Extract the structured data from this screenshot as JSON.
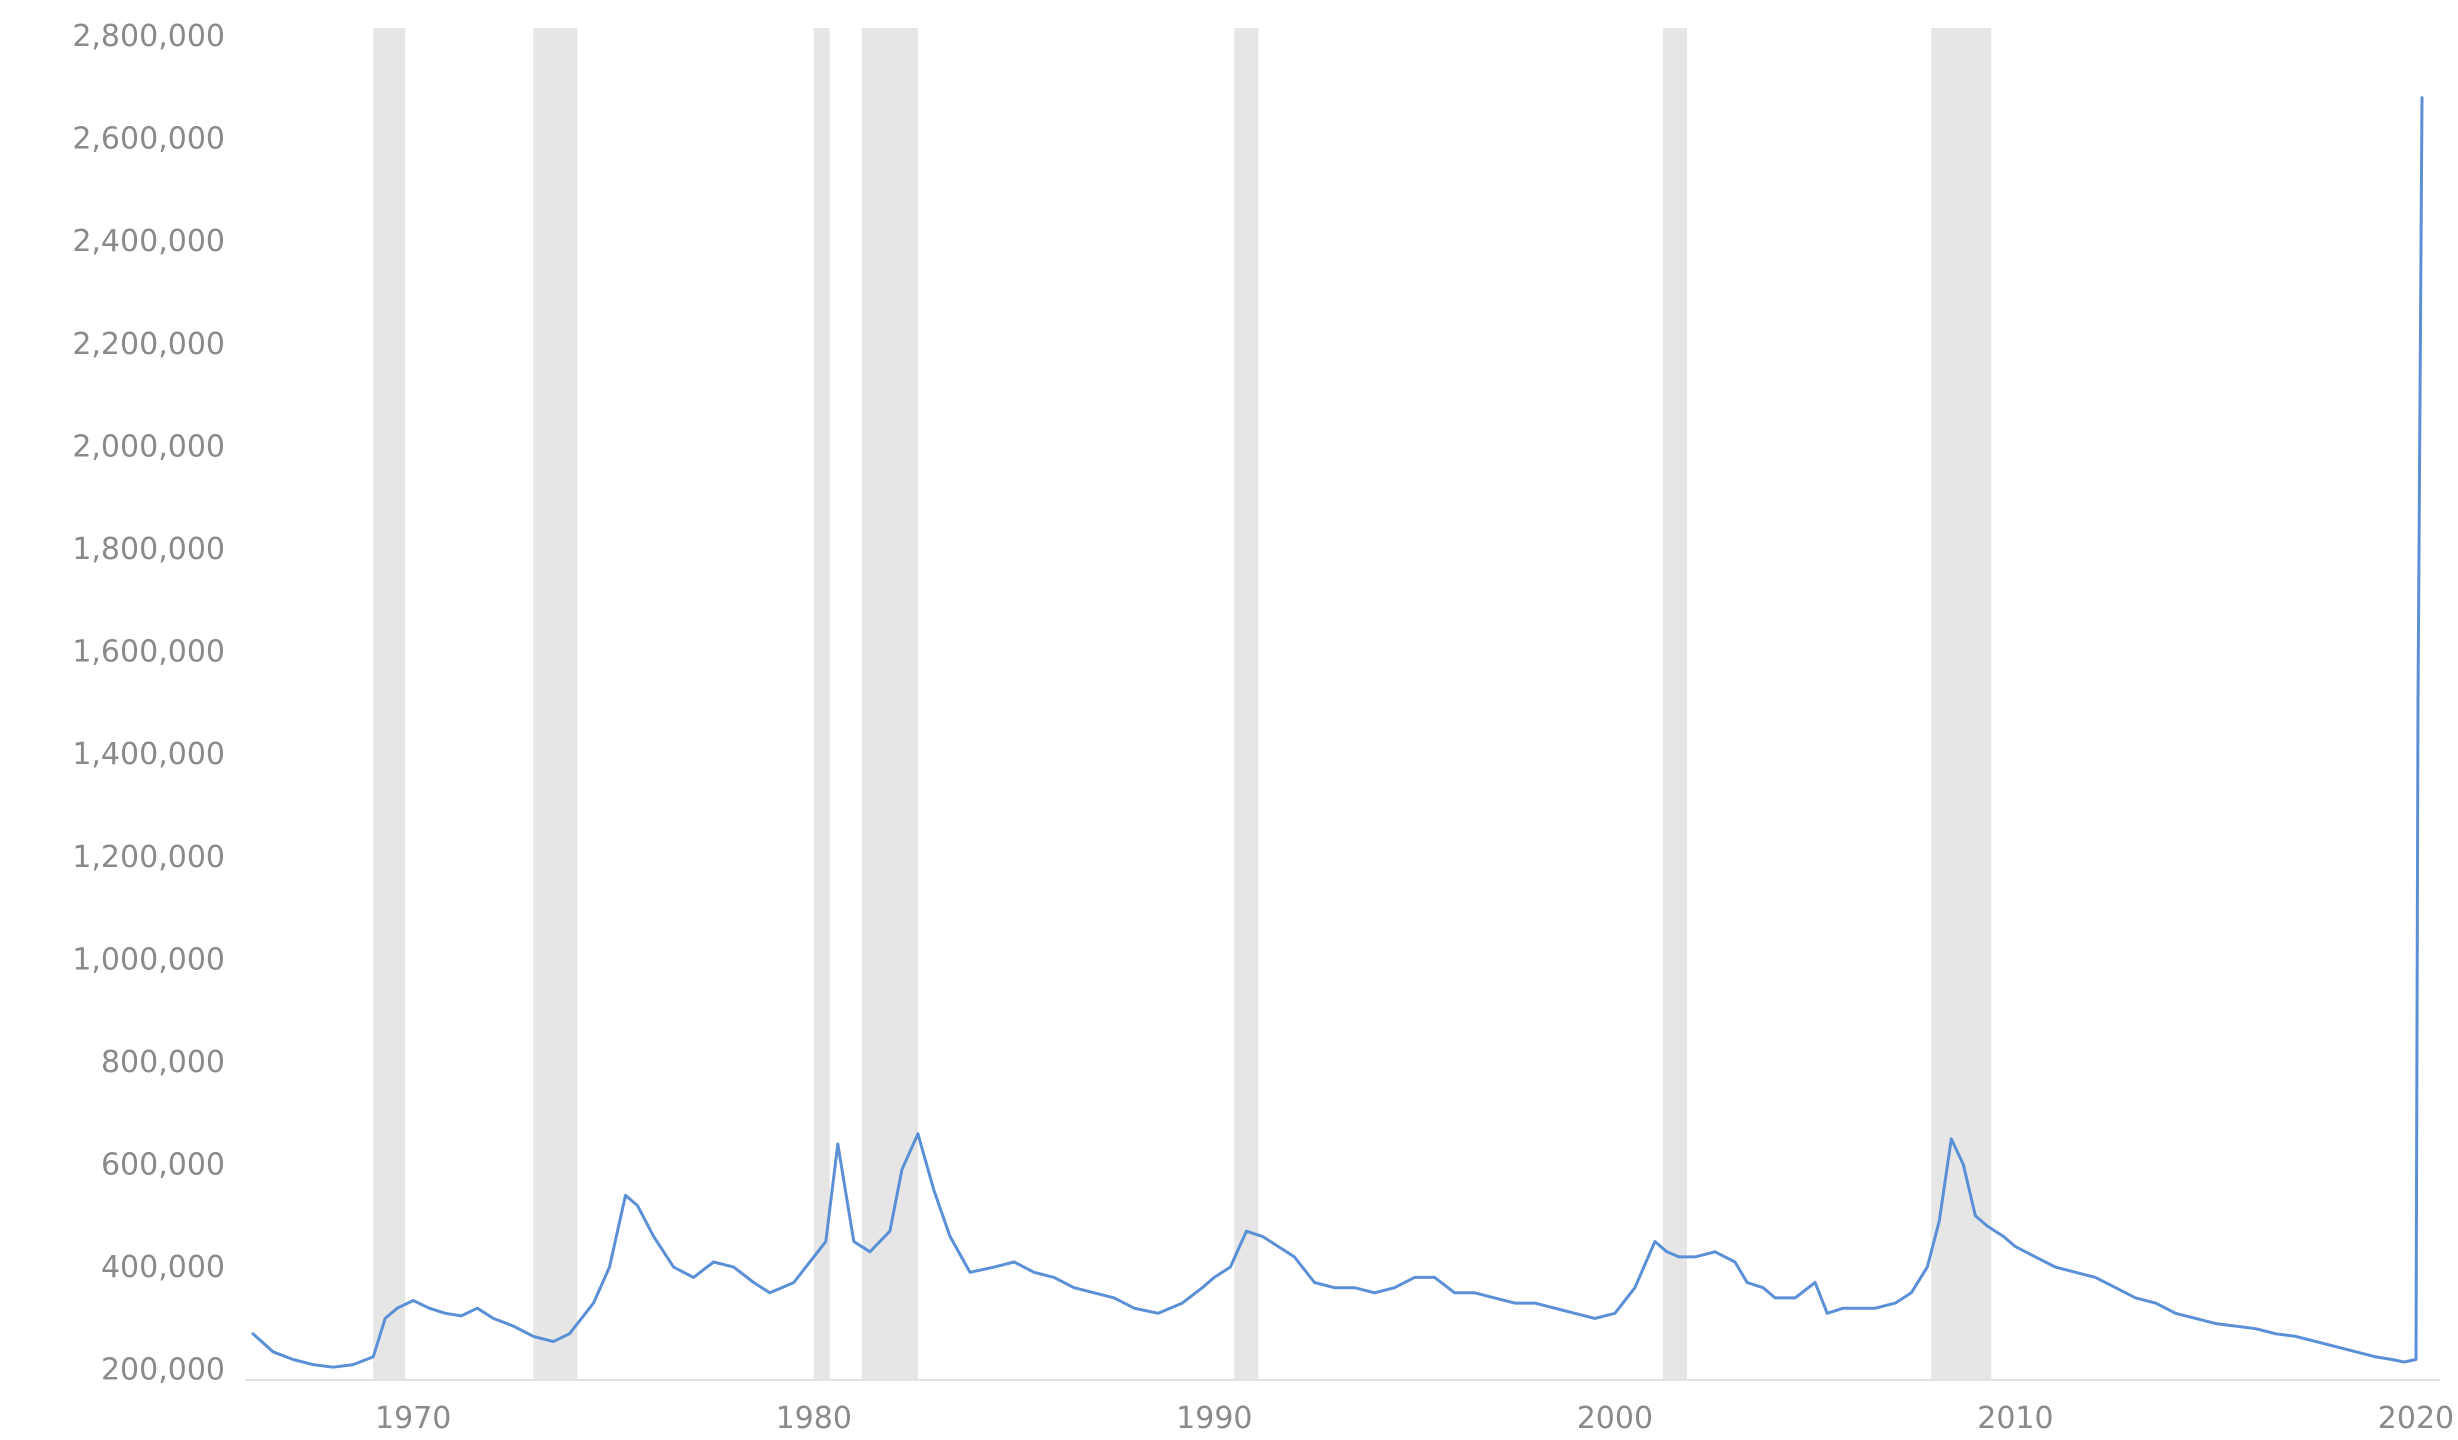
{
  "chart_data": {
    "type": "line",
    "title": "",
    "xlabel": "",
    "ylabel": "",
    "xlim": [
      1965.8,
      2020.6
    ],
    "ylim": [
      180000,
      2800000
    ],
    "grid": false,
    "legend": "none",
    "x_ticks": [
      {
        "value": 1970,
        "label": "1970"
      },
      {
        "value": 1980,
        "label": "1980"
      },
      {
        "value": 1990,
        "label": "1990"
      },
      {
        "value": 2000,
        "label": "2000"
      },
      {
        "value": 2010,
        "label": "2010"
      },
      {
        "value": 2020,
        "label": "2020"
      }
    ],
    "y_ticks": [
      {
        "value": 200000,
        "label": "200,000"
      },
      {
        "value": 400000,
        "label": "400,000"
      },
      {
        "value": 600000,
        "label": "600,000"
      },
      {
        "value": 800000,
        "label": "800,000"
      },
      {
        "value": 1000000,
        "label": "1,000,000"
      },
      {
        "value": 1200000,
        "label": "1,200,000"
      },
      {
        "value": 1400000,
        "label": "1,400,000"
      },
      {
        "value": 1600000,
        "label": "1,600,000"
      },
      {
        "value": 1800000,
        "label": "1,800,000"
      },
      {
        "value": 2000000,
        "label": "2,000,000"
      },
      {
        "value": 2200000,
        "label": "2,200,000"
      },
      {
        "value": 2400000,
        "label": "2,400,000"
      },
      {
        "value": 2600000,
        "label": "2,600,000"
      },
      {
        "value": 2800000,
        "label": "2,800,000"
      }
    ],
    "recession_bands": [
      {
        "start": 1969.0,
        "end": 1969.8
      },
      {
        "start": 1973.0,
        "end": 1974.1
      },
      {
        "start": 1980.0,
        "end": 1980.4
      },
      {
        "start": 1981.2,
        "end": 1982.6
      },
      {
        "start": 1990.5,
        "end": 1991.1
      },
      {
        "start": 2001.2,
        "end": 2001.8
      },
      {
        "start": 2007.9,
        "end": 2009.4
      }
    ],
    "series": [
      {
        "color": "#5b8fd6",
        "x": [
          1966.0,
          1966.5,
          1967.0,
          1967.5,
          1968.0,
          1968.5,
          1969.0,
          1969.3,
          1969.6,
          1970.0,
          1970.4,
          1970.8,
          1971.2,
          1971.6,
          1972.0,
          1972.5,
          1973.0,
          1973.5,
          1973.9,
          1974.2,
          1974.5,
          1974.9,
          1975.3,
          1975.6,
          1976.0,
          1976.5,
          1977.0,
          1977.5,
          1978.0,
          1978.5,
          1978.9,
          1979.2,
          1979.5,
          1979.8,
          1980.0,
          1980.3,
          1980.6,
          1981.0,
          1981.4,
          1981.9,
          1982.2,
          1982.6,
          1983.0,
          1983.4,
          1983.9,
          1984.5,
          1985.0,
          1985.5,
          1986.0,
          1986.5,
          1987.0,
          1987.5,
          1988.0,
          1988.6,
          1989.2,
          1989.7,
          1990.0,
          1990.4,
          1990.8,
          1991.2,
          1991.6,
          1992.0,
          1992.5,
          1993.0,
          1993.5,
          1994.0,
          1994.5,
          1995.0,
          1995.5,
          1996.0,
          1996.5,
          1997.0,
          1997.5,
          1998.0,
          1998.5,
          1999.0,
          1999.5,
          2000.0,
          2000.5,
          2001.0,
          2001.3,
          2001.6,
          2002.0,
          2002.5,
          2003.0,
          2003.3,
          2003.7,
          2004.0,
          2004.5,
          2005.0,
          2005.3,
          2005.7,
          2006.0,
          2006.5,
          2007.0,
          2007.4,
          2007.8,
          2008.1,
          2008.4,
          2008.7,
          2009.0,
          2009.3,
          2009.7,
          2010.0,
          2010.5,
          2011.0,
          2011.5,
          2012.0,
          2012.5,
          2013.0,
          2013.5,
          2014.0,
          2014.5,
          2015.0,
          2015.5,
          2016.0,
          2016.5,
          2017.0,
          2017.5,
          2018.0,
          2018.5,
          2019.0,
          2019.4,
          2019.7,
          2020.0,
          2020.05,
          2020.15
        ],
        "y": [
          270000,
          235000,
          220000,
          210000,
          205000,
          210000,
          225000,
          300000,
          320000,
          335000,
          320000,
          310000,
          305000,
          320000,
          300000,
          285000,
          265000,
          255000,
          270000,
          300000,
          330000,
          400000,
          540000,
          520000,
          460000,
          400000,
          380000,
          410000,
          400000,
          370000,
          350000,
          360000,
          370000,
          400000,
          420000,
          450000,
          640000,
          450000,
          430000,
          470000,
          590000,
          660000,
          550000,
          460000,
          390000,
          400000,
          410000,
          390000,
          380000,
          360000,
          350000,
          340000,
          320000,
          310000,
          330000,
          360000,
          380000,
          400000,
          470000,
          460000,
          440000,
          420000,
          370000,
          360000,
          360000,
          350000,
          360000,
          380000,
          380000,
          350000,
          350000,
          340000,
          330000,
          330000,
          320000,
          310000,
          300000,
          310000,
          360000,
          450000,
          430000,
          420000,
          420000,
          430000,
          410000,
          370000,
          360000,
          340000,
          340000,
          370000,
          310000,
          320000,
          320000,
          320000,
          330000,
          350000,
          400000,
          490000,
          650000,
          600000,
          500000,
          480000,
          460000,
          440000,
          420000,
          400000,
          390000,
          380000,
          360000,
          340000,
          330000,
          310000,
          300000,
          290000,
          285000,
          280000,
          270000,
          265000,
          255000,
          245000,
          235000,
          225000,
          220000,
          215000,
          220000,
          1500000,
          2680000
        ]
      }
    ]
  }
}
